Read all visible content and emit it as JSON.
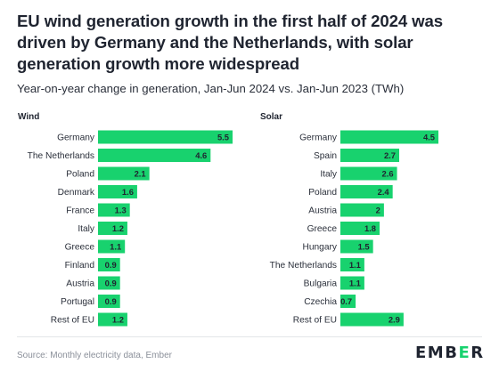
{
  "title": "EU wind generation growth in the first half of 2024 was driven by Germany and the Netherlands, with solar generation growth more widespread",
  "subtitle": "Year-on-year change in generation, Jan-Jun 2024 vs. Jan-Jun 2023 (TWh)",
  "source": "Source: Monthly electricity data, Ember",
  "logo": {
    "prefix": "EMB",
    "mark": "E",
    "suffix": "R"
  },
  "colors": {
    "bar": "#18d26e",
    "text": "#1f2430",
    "muted": "#8a8f99"
  },
  "chart_data": [
    {
      "type": "bar",
      "orientation": "horizontal",
      "title": "Wind",
      "categories": [
        "Germany",
        "The Netherlands",
        "Poland",
        "Denmark",
        "France",
        "Italy",
        "Greece",
        "Finland",
        "Austria",
        "Portugal",
        "Rest of EU"
      ],
      "values": [
        5.5,
        4.6,
        2.1,
        1.6,
        1.3,
        1.2,
        1.1,
        0.9,
        0.9,
        0.9,
        1.2
      ],
      "value_labels": [
        "5.5",
        "4.6",
        "2.1",
        "1.6",
        "1.3",
        "1.2",
        "1.1",
        "0.9",
        "0.9",
        "0.9",
        "1.2"
      ],
      "xlim": [
        0,
        5.5
      ],
      "grid": false
    },
    {
      "type": "bar",
      "orientation": "horizontal",
      "title": "Solar",
      "categories": [
        "Germany",
        "Spain",
        "Italy",
        "Poland",
        "Austria",
        "Greece",
        "Hungary",
        "The Netherlands",
        "Bulgaria",
        "Czechia",
        "Rest of EU"
      ],
      "values": [
        4.5,
        2.7,
        2.6,
        2.4,
        2.0,
        1.8,
        1.5,
        1.1,
        1.1,
        0.7,
        2.9
      ],
      "value_labels": [
        "4.5",
        "2.7",
        "2.6",
        "2.4",
        "2",
        "1.8",
        "1.5",
        "1.1",
        "1.1",
        "0.7",
        "2.9"
      ],
      "xlim": [
        0,
        4.5
      ],
      "grid": false
    }
  ]
}
